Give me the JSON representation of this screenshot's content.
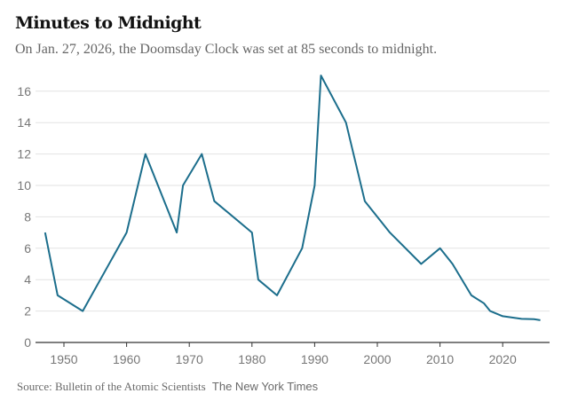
{
  "chart_data": {
    "type": "line",
    "title": "Minutes to Midnight",
    "subtitle": "On Jan. 27, 2026, the Doomsday Clock was set at 85 seconds to midnight.",
    "xlabel": "",
    "ylabel": "",
    "xlim": [
      1946,
      2028
    ],
    "ylim": [
      0,
      16
    ],
    "x_ticks": [
      1950,
      1960,
      1970,
      1980,
      1990,
      2000,
      2010,
      2020
    ],
    "y_ticks": [
      0,
      2,
      4,
      6,
      8,
      10,
      12,
      14,
      16
    ],
    "grid": true,
    "series": [
      {
        "name": "Minutes to midnight",
        "color": "#1c6e8c",
        "x": [
          1947,
          1949,
          1953,
          1960,
          1963,
          1968,
          1969,
          1972,
          1974,
          1980,
          1981,
          1984,
          1988,
          1990,
          1991,
          1995,
          1998,
          2002,
          2007,
          2010,
          2012,
          2015,
          2017,
          2018,
          2020,
          2023,
          2025,
          2026
        ],
        "y": [
          7,
          3,
          2,
          7,
          12,
          7,
          10,
          12,
          9,
          7,
          4,
          3,
          6,
          10,
          17,
          14,
          9,
          7,
          5,
          6,
          5,
          3,
          2.5,
          2,
          1.67,
          1.5,
          1.48,
          1.42
        ]
      }
    ]
  },
  "footer": {
    "source": "Source: Bulletin of the Atomic Scientists",
    "credit": "The New York Times"
  }
}
